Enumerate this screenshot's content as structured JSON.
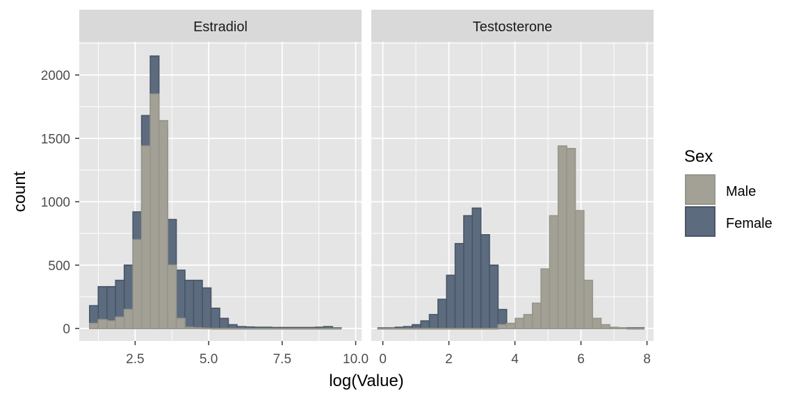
{
  "colors": {
    "panel_bg": "#e5e5e5",
    "strip_bg": "#d9d9d9",
    "grid": "#ffffff",
    "male_fill": "#a3a096",
    "male_stroke": "#96958a",
    "female_fill": "#5d6b7e",
    "female_stroke": "#475568"
  },
  "chart_data": {
    "type": "histogram",
    "xlabel": "log(Value)",
    "ylabel": "count",
    "ylim": [
      0,
      2250
    ],
    "y_ticks": [
      0,
      500,
      1000,
      1500,
      2000
    ],
    "grid": true,
    "legend": {
      "title": "Sex",
      "placement": "right",
      "items": [
        {
          "label": "Male",
          "color": "#a3a096"
        },
        {
          "label": "Female",
          "color": "#5d6b7e"
        }
      ]
    },
    "facets": [
      {
        "strip": "Estradiol",
        "xlim": [
          0.6,
          10.2
        ],
        "x_ticks": [
          2.5,
          5.0,
          7.5,
          10.0
        ],
        "x_tick_labels": [
          "2.5",
          "5.0",
          "7.5",
          "10.0"
        ],
        "bin_start": 0.95,
        "bin_width": 0.295,
        "series": [
          {
            "name": "Female",
            "values": [
              180,
              330,
              330,
              380,
              500,
              920,
              1680,
              2150,
              1560,
              860,
              460,
              380,
              380,
              320,
              160,
              80,
              30,
              15,
              12,
              10,
              10,
              8,
              8,
              8,
              8,
              8,
              10,
              15,
              5
            ]
          },
          {
            "name": "Male",
            "values": [
              40,
              70,
              60,
              90,
              150,
              700,
              1440,
              1850,
              1640,
              500,
              80,
              10,
              5,
              2,
              0,
              0,
              0,
              0,
              0,
              0,
              0,
              0,
              0,
              0,
              0,
              0,
              0,
              0,
              0
            ]
          }
        ]
      },
      {
        "strip": "Testosterone",
        "xlim": [
          -0.35,
          8.2
        ],
        "x_ticks": [
          0,
          2,
          4,
          6,
          8
        ],
        "x_tick_labels": [
          "0",
          "2",
          "4",
          "6",
          "8"
        ],
        "bin_start": -0.15,
        "bin_width": 0.26,
        "series": [
          {
            "name": "Female",
            "values": [
              5,
              5,
              10,
              15,
              30,
              60,
              110,
              230,
              420,
              670,
              890,
              950,
              740,
              500,
              150,
              40,
              20,
              10,
              5,
              5,
              5,
              5,
              5,
              5,
              5,
              5,
              5,
              5,
              5,
              5,
              5
            ]
          },
          {
            "name": "Male",
            "values": [
              0,
              0,
              0,
              0,
              0,
              0,
              0,
              0,
              0,
              0,
              0,
              0,
              0,
              0,
              30,
              40,
              80,
              110,
              200,
              470,
              890,
              1440,
              1420,
              930,
              380,
              80,
              30,
              10,
              5,
              0,
              0
            ]
          }
        ]
      }
    ]
  }
}
